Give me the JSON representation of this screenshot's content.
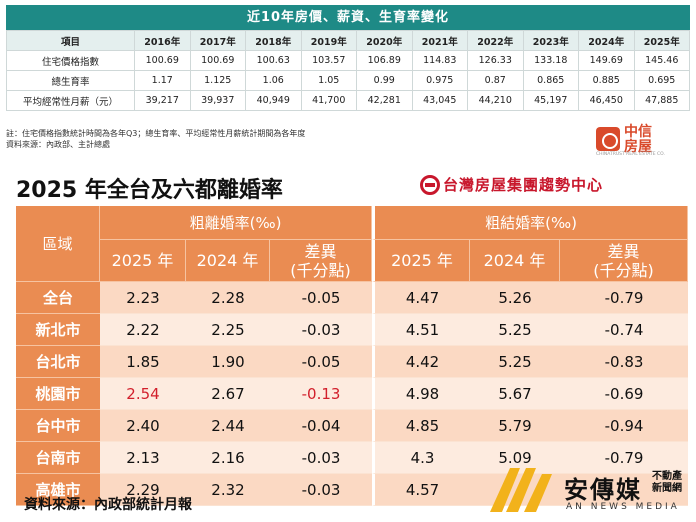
{
  "top_table": {
    "title": "近10年房價、薪資、生育率變化",
    "header_label": "項目",
    "years": [
      "2016年",
      "2017年",
      "2018年",
      "2019年",
      "2020年",
      "2021年",
      "2022年",
      "2023年",
      "2024年",
      "2025年"
    ],
    "rows": [
      {
        "label": "住宅價格指數",
        "values": [
          "100.69",
          "100.69",
          "100.63",
          "103.57",
          "106.89",
          "114.83",
          "126.33",
          "133.18",
          "149.69",
          "145.46"
        ]
      },
      {
        "label": "總生育率",
        "values": [
          "1.17",
          "1.125",
          "1.06",
          "1.05",
          "0.99",
          "0.975",
          "0.87",
          "0.865",
          "0.885",
          "0.695"
        ]
      },
      {
        "label": "平均經常性月薪（元）",
        "values": [
          "39,217",
          "39,937",
          "40,949",
          "41,700",
          "42,281",
          "43,045",
          "44,210",
          "45,197",
          "46,450",
          "47,885"
        ]
      }
    ],
    "note": "註：住宅價格指數統計時間為各年Q3；總生育率、平均經常性月薪統計期間為各年度",
    "source": "資料來源：內政部、主計總處"
  },
  "zx_logo": {
    "name": "中信房屋",
    "sub": "CHINATRUST REAL ESTATE CO."
  },
  "divorce": {
    "title": "2025 年全台及六都離婚率",
    "brand": "台灣房屋集團趨勢中心",
    "region_header": "區域",
    "divorce_group": "粗離婚率(‰)",
    "marriage_group": "粗結婚率(‰)",
    "col_2025": "2025 年",
    "col_2024": "2024 年",
    "col_diff_line1": "差異",
    "col_diff_line2": "(千分點)",
    "rows": [
      {
        "region": "全台",
        "div_2025": "2.23",
        "div_2024": "2.28",
        "div_diff": "-0.05",
        "mar_2025": "4.47",
        "mar_2024": "5.26",
        "mar_diff": "-0.79"
      },
      {
        "region": "新北市",
        "div_2025": "2.22",
        "div_2024": "2.25",
        "div_diff": "-0.03",
        "mar_2025": "4.51",
        "mar_2024": "5.25",
        "mar_diff": "-0.74"
      },
      {
        "region": "台北市",
        "div_2025": "1.85",
        "div_2024": "1.90",
        "div_diff": "-0.05",
        "mar_2025": "4.42",
        "mar_2024": "5.25",
        "mar_diff": "-0.83"
      },
      {
        "region": "桃園市",
        "div_2025": "2.54",
        "div_2024": "2.67",
        "div_diff": "-0.13",
        "mar_2025": "4.98",
        "mar_2024": "5.67",
        "mar_diff": "-0.69",
        "highlight": true
      },
      {
        "region": "台中市",
        "div_2025": "2.40",
        "div_2024": "2.44",
        "div_diff": "-0.04",
        "mar_2025": "4.85",
        "mar_2024": "5.79",
        "mar_diff": "-0.94"
      },
      {
        "region": "台南市",
        "div_2025": "2.13",
        "div_2024": "2.16",
        "div_diff": "-0.03",
        "mar_2025": "4.3",
        "mar_2024": "5.09",
        "mar_diff": "-0.79"
      },
      {
        "region": "高雄市",
        "div_2025": "2.29",
        "div_2024": "2.32",
        "div_diff": "-0.03",
        "mar_2025": "4.57",
        "mar_2024": "",
        "mar_diff": ""
      }
    ],
    "source": "資料來源：內政部統計月報",
    "highlight_color": "#d21f2b",
    "accent_color": "#ea8c52"
  },
  "an_logo": {
    "cn": "安傳媒",
    "cn_sub_1": "不動產",
    "cn_sub_2": "新聞網",
    "en": "AN NEWS MEDIA"
  }
}
